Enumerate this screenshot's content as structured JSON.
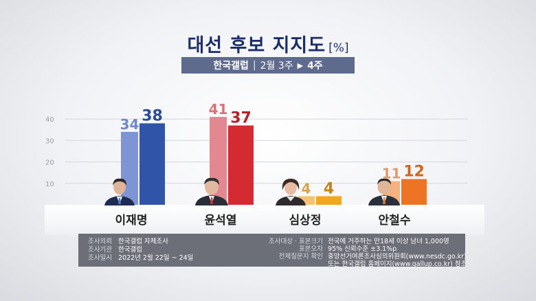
{
  "title": "대선 후보 지지도",
  "title_unit": "[%]",
  "subtitle": {
    "org": "한국갤럽",
    "sep": "|",
    "weeks": "2월 3주",
    "arrow": "▶",
    "current": "4주"
  },
  "chart_data": {
    "type": "bar",
    "categories": [
      "이재명",
      "윤석열",
      "심상정",
      "안철수"
    ],
    "series": [
      {
        "values": [
          34,
          41,
          4,
          11
        ]
      },
      {
        "values": [
          38,
          37,
          4,
          12
        ]
      }
    ],
    "yticks": [
      "10",
      "20",
      "30",
      "40"
    ],
    "ylim": [
      0,
      45
    ],
    "colors": {
      "prev": [
        "#7d95d4",
        "#e38890",
        "#f3c272",
        "#f6b27e"
      ],
      "curr": [
        "#3054a8",
        "#d42a31",
        "#f2a81e",
        "#ee7425"
      ],
      "label_prev": [
        "#7088c8",
        "#d8737b",
        "#d9a34d",
        "#e59a66"
      ],
      "label_curr": [
        "#2b4a98",
        "#b1222b",
        "#c98310",
        "#cf6520"
      ]
    }
  },
  "info": {
    "left": [
      {
        "label": "조사의뢰",
        "value": "한국갤럽 자체조사"
      },
      {
        "label": "조사기관",
        "value": "한국갤럽"
      },
      {
        "label": "조사일시",
        "value": "2022년 2월 22일 ~ 24일"
      }
    ],
    "right": [
      {
        "label": "조사대상 · 표본크기",
        "value": "전국에 거주하는 만18세 이상 남녀 1,000명"
      },
      {
        "label": "표본오차",
        "value": "95% 신뢰수준 ±3.1%p"
      },
      {
        "label": "전체질문지 확인",
        "value": "중앙선거여론조사심의위원회(www.nesdc.go.kr)"
      },
      {
        "label": "",
        "value": "또는 한국갤럽 홈페이지(www.gallup.co.kr) 참조"
      }
    ]
  }
}
